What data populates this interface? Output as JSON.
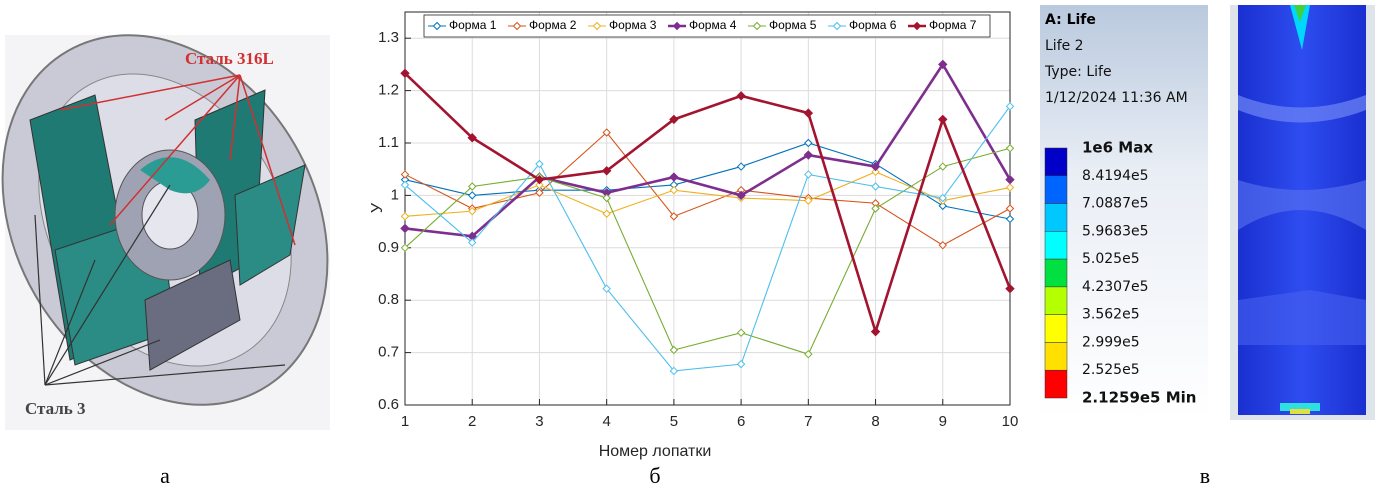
{
  "captions": [
    "а",
    "б",
    "в"
  ],
  "panel_a": {
    "labels": [
      "Сталь 316L",
      "Сталь 3"
    ]
  },
  "panel_c": {
    "title": "A: Life",
    "lines": [
      "Life 2",
      "Type: Life",
      "1/12/2024 11:36 AM"
    ],
    "colorbar": {
      "labels": [
        "1e6 Max",
        "8.4194e5",
        "7.0887e5",
        "5.9683e5",
        "5.025e5",
        "4.2307e5",
        "3.562e5",
        "2.999e5",
        "2.525e5",
        "2.1259e5 Min"
      ],
      "colors": [
        "#0000c8",
        "#0064ff",
        "#00c8ff",
        "#00ffff",
        "#00e040",
        "#b4ff00",
        "#ffff00",
        "#ffe000",
        "#ff0000"
      ]
    }
  },
  "chart_data": {
    "type": "line",
    "xlabel": "Номер лопатки",
    "ylabel": "У",
    "x": [
      1,
      2,
      3,
      4,
      5,
      6,
      7,
      8,
      9,
      10
    ],
    "xlim": [
      1,
      10
    ],
    "xticks": [
      1,
      2,
      3,
      4,
      5,
      6,
      7,
      8,
      9,
      10
    ],
    "ylim": [
      0.6,
      1.35
    ],
    "yticks": [
      0.6,
      0.7,
      0.8,
      0.9,
      1,
      1.1,
      1.2,
      1.3
    ],
    "grid": true,
    "legend": "top",
    "series": [
      {
        "name": "Форма 1",
        "color": "#0072bd",
        "values": [
          1.03,
          1.0,
          1.01,
          1.01,
          1.02,
          1.055,
          1.1,
          1.06,
          0.98,
          0.955
        ]
      },
      {
        "name": "Форма 2",
        "color": "#d95319",
        "values": [
          1.04,
          0.975,
          1.005,
          1.12,
          0.96,
          1.01,
          0.995,
          0.985,
          0.905,
          0.975
        ]
      },
      {
        "name": "Форма 3",
        "color": "#edb120",
        "values": [
          0.96,
          0.97,
          1.02,
          0.965,
          1.01,
          0.995,
          0.99,
          1.045,
          0.99,
          1.015
        ]
      },
      {
        "name": "Форма 4",
        "color": "#7e2f8e",
        "values": [
          0.937,
          0.922,
          1.035,
          1.005,
          1.035,
          1.0,
          1.077,
          1.055,
          1.25,
          1.03
        ]
      },
      {
        "name": "Форма 5",
        "color": "#77ac30",
        "values": [
          0.9,
          1.017,
          1.035,
          0.995,
          0.705,
          0.738,
          0.697,
          0.975,
          1.055,
          1.09
        ]
      },
      {
        "name": "Форма 6",
        "color": "#4dbeee",
        "values": [
          1.02,
          0.91,
          1.06,
          0.822,
          0.665,
          0.678,
          1.04,
          1.017,
          0.995,
          1.17
        ]
      },
      {
        "name": "Форма 7",
        "color": "#a2142f",
        "values": [
          1.233,
          1.11,
          1.03,
          1.047,
          1.145,
          1.19,
          1.157,
          0.74,
          1.145,
          0.822
        ]
      }
    ]
  }
}
